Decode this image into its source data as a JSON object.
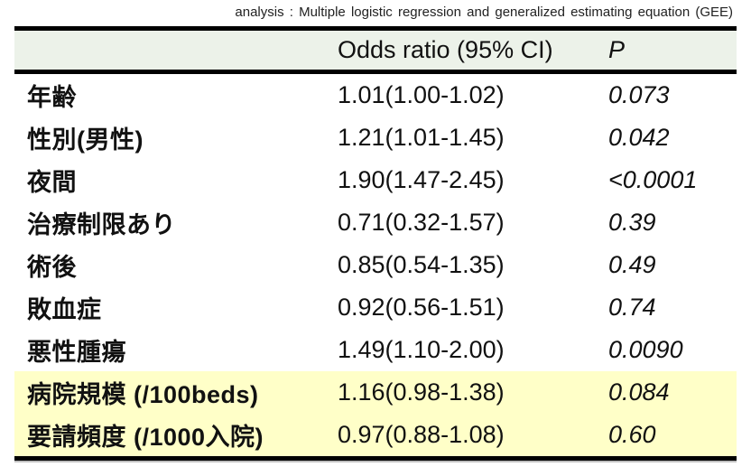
{
  "caption": "analysis : Multiple logistic regression and generalized estimating equation (GEE)",
  "colors": {
    "header_bg": "#ecf2e9",
    "highlight_bg": "#ffffc8",
    "line": "#000000"
  },
  "table": {
    "headers": {
      "variable": "",
      "odds_ratio": "Odds ratio (95% CI)",
      "p": "P"
    },
    "rows": [
      {
        "label": "年齢",
        "odds_ratio": "1.01(1.00-1.02)",
        "p": "0.073",
        "highlighted": false
      },
      {
        "label": "性別(男性)",
        "odds_ratio": "1.21(1.01-1.45)",
        "p": "0.042",
        "highlighted": false
      },
      {
        "label": "夜間",
        "odds_ratio": "1.90(1.47-2.45)",
        "p": "<0.0001",
        "highlighted": false
      },
      {
        "label": "治療制限あり",
        "odds_ratio": "0.71(0.32-1.57)",
        "p": "0.39",
        "highlighted": false
      },
      {
        "label": "術後",
        "odds_ratio": "0.85(0.54-1.35)",
        "p": "0.49",
        "highlighted": false
      },
      {
        "label": "敗血症",
        "odds_ratio": "0.92(0.56-1.51)",
        "p": "0.74",
        "highlighted": false
      },
      {
        "label": "悪性腫瘍",
        "odds_ratio": "1.49(1.10-2.00)",
        "p": "0.0090",
        "highlighted": false
      },
      {
        "label": "病院規模 (/100beds)",
        "odds_ratio": "1.16(0.98-1.38)",
        "p": "0.084",
        "highlighted": true
      },
      {
        "label": "要請頻度 (/1000入院)",
        "odds_ratio": "0.97(0.88-1.08)",
        "p": "0.60",
        "highlighted": true
      }
    ]
  }
}
